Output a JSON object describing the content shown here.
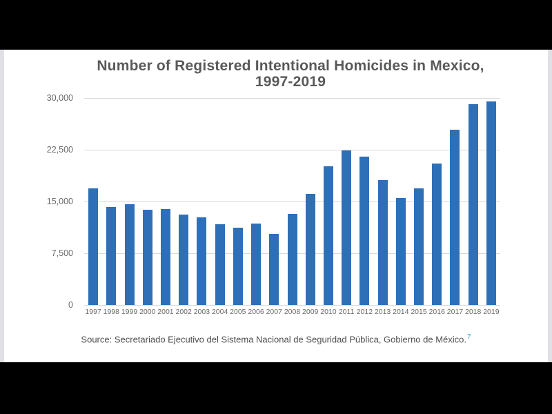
{
  "frame": {
    "background_color": "#000000",
    "slide_background_color": "#FFFFFF"
  },
  "slide": {
    "title_line1": "Number of Registered Intentional Homicides in Mexico,",
    "title_line2": "1997-2019",
    "source_text": "Source: Secretariado Ejecutivo del Sistema Nacional de Seguridad Pública, Gobierno de México.",
    "footnote_marker": "7"
  },
  "colors": {
    "bar_blue": "#2E70B7",
    "title_gray": "#58595B",
    "axis_label_gray": "#6A6A6A",
    "gridline_gray": "#D9D9D9",
    "footnote_teal": "#3EA8BE"
  },
  "chart_data": {
    "type": "bar",
    "title": "Number of Registered Intentional Homicides in Mexico, 1997-2019",
    "categories": [
      "1997",
      "1998",
      "1999",
      "2000",
      "2001",
      "2002",
      "2003",
      "2004",
      "2005",
      "2006",
      "2007",
      "2008",
      "2009",
      "2010",
      "2011",
      "2012",
      "2013",
      "2014",
      "2015",
      "2016",
      "2017",
      "2018",
      "2019"
    ],
    "values": [
      16900,
      14200,
      14600,
      13800,
      13900,
      13100,
      12700,
      11700,
      11200,
      11800,
      10300,
      13200,
      16100,
      20100,
      22400,
      21500,
      18100,
      15500,
      16900,
      20500,
      25400,
      29100,
      29500
    ],
    "xlabel": "",
    "ylabel": "",
    "ylim": [
      0,
      30000
    ],
    "yticks": [
      0,
      7500,
      15000,
      22500,
      30000
    ],
    "ytick_labels": [
      "0",
      "7,500",
      "15,000",
      "22,500",
      "30,000"
    ],
    "grid": true,
    "legend": false,
    "bar_color": "#2E70B7",
    "source": "Source: Secretariado Ejecutivo del Sistema Nacional de Seguridad Pública, Gobierno de México."
  }
}
